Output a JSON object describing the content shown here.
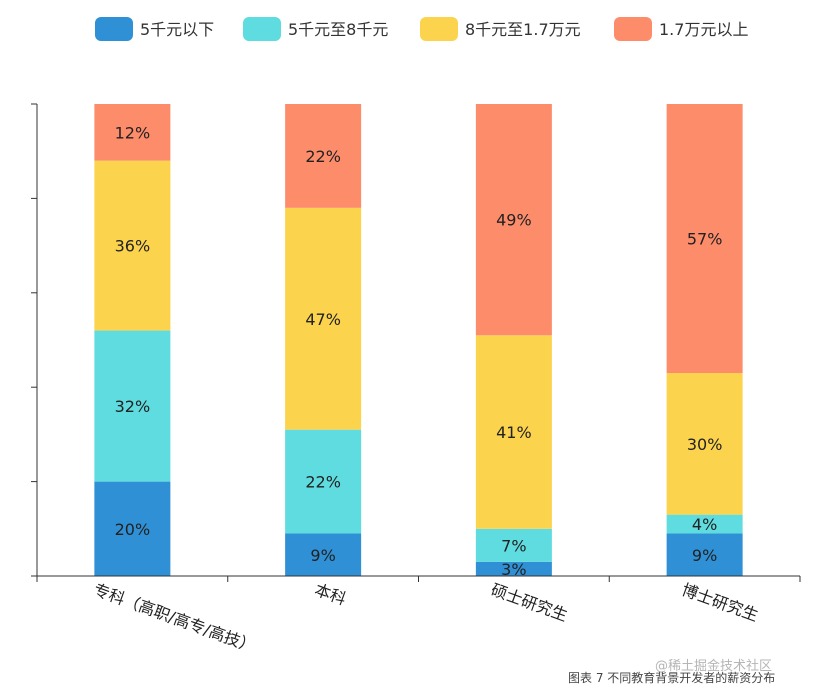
{
  "chart_data": {
    "type": "bar",
    "stacked": true,
    "percent": true,
    "categories": [
      "专科（高职/高专/高技）",
      "本科",
      "硕士研究生",
      "博士研究生"
    ],
    "series": [
      {
        "name": "5千元以下",
        "color": "#2f90d6",
        "values": [
          20,
          9,
          3,
          9
        ]
      },
      {
        "name": "5千元至8千元",
        "color": "#5edcdf",
        "values": [
          32,
          22,
          7,
          4
        ]
      },
      {
        "name": "8千元至1.7万元",
        "color": "#fcd34d",
        "values": [
          36,
          47,
          41,
          30
        ]
      },
      {
        "name": "1.7万元以上",
        "color": "#fd8c6b",
        "values": [
          12,
          22,
          49,
          57
        ]
      }
    ],
    "ylim": [
      0,
      100
    ],
    "legend_position": "top",
    "grid": false
  },
  "watermark": "@稀土掘金技术社区",
  "caption": "图表 7  不同教育背景开发者的薪资分布"
}
